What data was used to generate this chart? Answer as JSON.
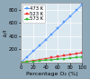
{
  "title": "",
  "xlabel": "Percentage O₂ (%)",
  "ylabel": "I₀/I",
  "xlim": [
    0,
    100
  ],
  "ylim": [
    0,
    900
  ],
  "yticks": [
    200,
    400,
    600,
    800
  ],
  "xticks": [
    0,
    20,
    40,
    60,
    80,
    100
  ],
  "grid": true,
  "plot_bg": "#dce8f0",
  "fig_bg": "#8fa8b8",
  "series": [
    {
      "label": "473 K",
      "color": "#5599ff",
      "marker": "s",
      "linewidth": 0.7,
      "markersize": 1.8,
      "x": [
        0,
        10,
        20,
        30,
        40,
        50,
        60,
        70,
        80,
        90,
        100
      ],
      "y": [
        1,
        85,
        170,
        255,
        340,
        430,
        520,
        610,
        700,
        790,
        880
      ]
    },
    {
      "label": "523 K",
      "color": "#ee3333",
      "marker": "s",
      "linewidth": 0.7,
      "markersize": 1.8,
      "x": [
        0,
        10,
        20,
        30,
        40,
        50,
        60,
        70,
        80,
        90,
        100
      ],
      "y": [
        1,
        13,
        27,
        42,
        57,
        72,
        87,
        103,
        118,
        133,
        148
      ]
    },
    {
      "label": "573 K",
      "color": "#33bb33",
      "marker": "s",
      "linewidth": 0.7,
      "markersize": 1.8,
      "x": [
        0,
        10,
        20,
        30,
        40,
        50,
        60,
        70,
        80,
        90,
        100
      ],
      "y": [
        1,
        8,
        16,
        24,
        32,
        40,
        49,
        57,
        65,
        74,
        82
      ]
    }
  ],
  "legend_fontsize": 3.8,
  "axis_label_fontsize": 4.5,
  "tick_fontsize": 3.8,
  "figsize": [
    1.0,
    0.87
  ],
  "dpi": 100
}
